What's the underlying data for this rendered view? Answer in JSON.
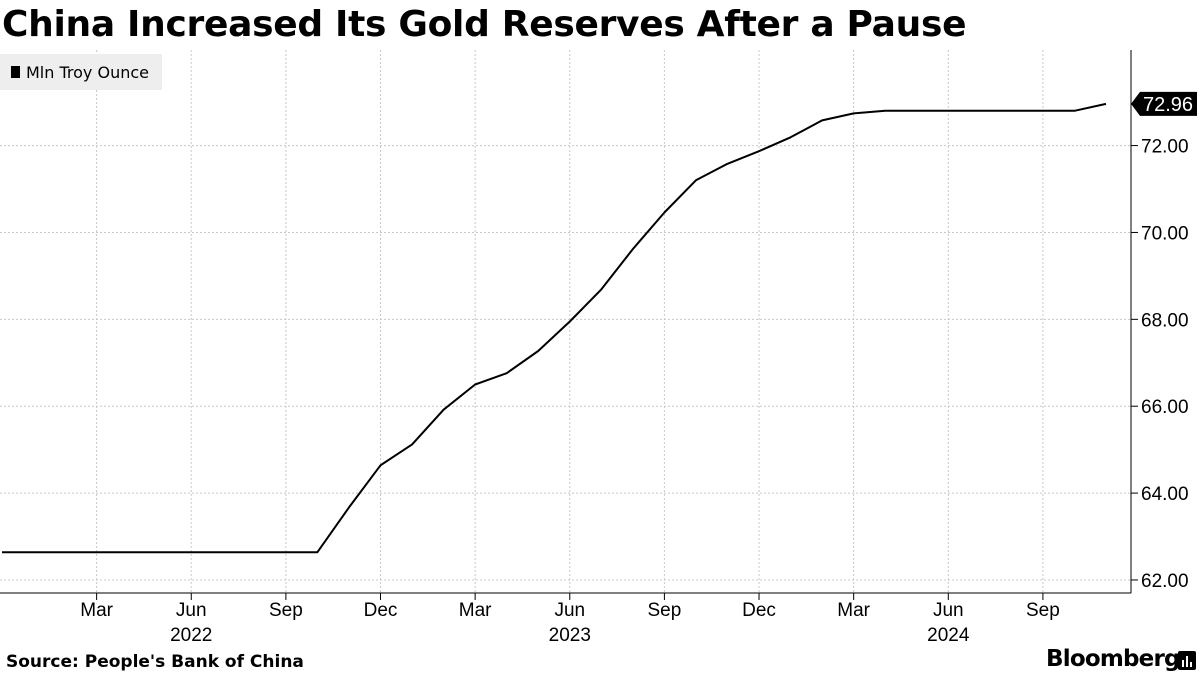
{
  "chart_data": {
    "type": "line",
    "title": "China Increased Its Gold Reserves After a Pause",
    "legend": [
      "Mln Troy Ounce"
    ],
    "legend_position": "top-left",
    "ylim": [
      61.7,
      74.2
    ],
    "y_ticks": [
      62,
      64,
      66,
      68,
      70,
      72
    ],
    "y_tick_labels": [
      "62.00",
      "64.00",
      "66.00",
      "68.00",
      "70.00",
      "72.00"
    ],
    "y_axis_position": "right",
    "grid": true,
    "x_range": [
      "2021-12",
      "2024-11"
    ],
    "x_ticks": [
      {
        "label": "Mar",
        "date": "2022-03"
      },
      {
        "label": "Jun",
        "date": "2022-06"
      },
      {
        "label": "Sep",
        "date": "2022-09"
      },
      {
        "label": "Dec",
        "date": "2022-12"
      },
      {
        "label": "Mar",
        "date": "2023-03"
      },
      {
        "label": "Jun",
        "date": "2023-06"
      },
      {
        "label": "Sep",
        "date": "2023-09"
      },
      {
        "label": "Dec",
        "date": "2023-12"
      },
      {
        "label": "Mar",
        "date": "2024-03"
      },
      {
        "label": "Jun",
        "date": "2024-06"
      },
      {
        "label": "Sep",
        "date": "2024-09"
      }
    ],
    "year_labels": [
      {
        "label": "2022",
        "date": "2022-06"
      },
      {
        "label": "2023",
        "date": "2023-06"
      },
      {
        "label": "2024",
        "date": "2024-06"
      }
    ],
    "series": [
      {
        "name": "Mln Troy Ounce",
        "last_value_label": "72.96",
        "points": [
          [
            "2021-12",
            62.64
          ],
          [
            "2022-01",
            62.64
          ],
          [
            "2022-02",
            62.64
          ],
          [
            "2022-03",
            62.64
          ],
          [
            "2022-04",
            62.64
          ],
          [
            "2022-05",
            62.64
          ],
          [
            "2022-06",
            62.64
          ],
          [
            "2022-07",
            62.64
          ],
          [
            "2022-08",
            62.64
          ],
          [
            "2022-09",
            62.64
          ],
          [
            "2022-10",
            62.64
          ],
          [
            "2022-11",
            63.67
          ],
          [
            "2022-12",
            64.64
          ],
          [
            "2023-01",
            65.12
          ],
          [
            "2023-02",
            65.92
          ],
          [
            "2023-03",
            66.5
          ],
          [
            "2023-04",
            66.76
          ],
          [
            "2023-05",
            67.27
          ],
          [
            "2023-06",
            67.95
          ],
          [
            "2023-07",
            68.69
          ],
          [
            "2023-08",
            69.62
          ],
          [
            "2023-09",
            70.46
          ],
          [
            "2023-10",
            71.2
          ],
          [
            "2023-11",
            71.58
          ],
          [
            "2023-12",
            71.87
          ],
          [
            "2024-01",
            72.19
          ],
          [
            "2024-02",
            72.58
          ],
          [
            "2024-03",
            72.74
          ],
          [
            "2024-04",
            72.8
          ],
          [
            "2024-05",
            72.8
          ],
          [
            "2024-06",
            72.8
          ],
          [
            "2024-07",
            72.8
          ],
          [
            "2024-08",
            72.8
          ],
          [
            "2024-09",
            72.8
          ],
          [
            "2024-10",
            72.8
          ],
          [
            "2024-11",
            72.96
          ]
        ]
      }
    ]
  },
  "footer": {
    "source": "Source: People's Bank of China",
    "brand": "Bloomberg"
  }
}
